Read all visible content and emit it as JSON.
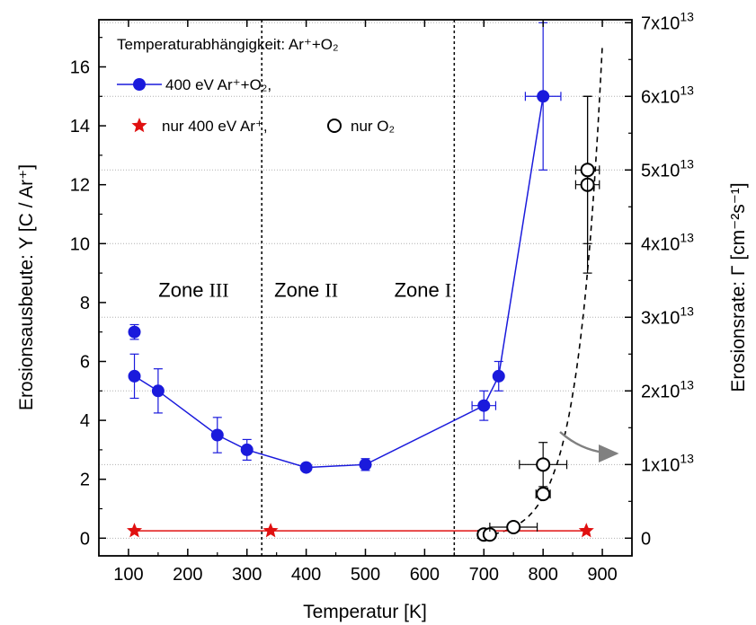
{
  "chart_data": {
    "type": "scatter",
    "title": "Temperaturabhängigkeit: Ar⁺+O₂",
    "xlabel": "Temperatur [K]",
    "ylabel_left": "Erosionsausbeute: Y [C / Ar⁺]",
    "ylabel_right": "Erosionsrate: Γ [cm⁻²s⁻¹]",
    "xlim": [
      50,
      950
    ],
    "ylim_left": [
      -0.6,
      17.6
    ],
    "ylim_right_scale_e13": [
      -0.24,
      7.04
    ],
    "x_ticks": [
      "100",
      "200",
      "300",
      "400",
      "500",
      "600",
      "700",
      "800",
      "900"
    ],
    "y_ticks_left": [
      "0",
      "2",
      "4",
      "6",
      "8",
      "10",
      "12",
      "14",
      "16"
    ],
    "y_ticks_right": [
      "0",
      "1x10",
      "2x10",
      "3x10",
      "4x10",
      "5x10",
      "6x10",
      "7x10"
    ],
    "y_ticks_right_exp": "13",
    "grid": "horizontal dotted",
    "zones": [
      {
        "name": "Zone",
        "numeral": "III"
      },
      {
        "name": "Zone",
        "numeral": "II"
      },
      {
        "name": "Zone",
        "numeral": "I"
      }
    ],
    "zone_boundaries": [
      325,
      650
    ],
    "series": [
      {
        "name": "400 eV Ar⁺+O₂,",
        "axis": "left",
        "color": "#1a1adc",
        "marker": "filled-circle",
        "connected": true,
        "points": [
          {
            "x": 110,
            "y": 5.5,
            "yerr": 0.75
          },
          {
            "x": 150,
            "y": 5.0,
            "yerr": 0.75
          },
          {
            "x": 250,
            "y": 3.5,
            "yerr": 0.6
          },
          {
            "x": 300,
            "y": 3.0,
            "yerr": 0.35
          },
          {
            "x": 400,
            "y": 2.4
          },
          {
            "x": 500,
            "y": 2.5,
            "yerr": 0.2
          },
          {
            "x": 700,
            "y": 4.5,
            "yerr": 0.5,
            "xerr": 20
          },
          {
            "x": 725,
            "y": 5.5,
            "yerr": 0.5
          },
          {
            "x": 800,
            "y": 15.0,
            "yerr": 2.5,
            "xerr": 30
          }
        ],
        "extra_points": [
          {
            "x": 110,
            "y": 7.0,
            "yerr": 0.25
          }
        ]
      },
      {
        "name": "nur 400 eV Ar⁺,",
        "axis": "left",
        "color": "#e01010",
        "marker": "star",
        "connected": true,
        "points": [
          {
            "x": 110,
            "y": 0.25
          },
          {
            "x": 340,
            "y": 0.25
          },
          {
            "x": 873,
            "y": 0.25
          }
        ]
      },
      {
        "name": "nur O₂",
        "axis": "right",
        "units": "1e13 cm^-2 s^-1",
        "color": "#000000",
        "marker": "open-circle",
        "connected": false,
        "points": [
          {
            "x": 700,
            "y": 0.05,
            "xerr": 10
          },
          {
            "x": 710,
            "y": 0.05
          },
          {
            "x": 750,
            "y": 0.15,
            "xerr": 40
          },
          {
            "x": 800,
            "y": 0.6,
            "xerr": 12
          },
          {
            "x": 800,
            "y": 1.0,
            "xerr": 40,
            "yerr": 0.3
          },
          {
            "x": 875,
            "y": 4.8,
            "xerr": 20,
            "yerr": 1.2
          },
          {
            "x": 875,
            "y": 5.0,
            "xerr": 20,
            "yerr": 1.0
          }
        ],
        "fit_curve": "dashed exponential from 700 K to 900 K"
      }
    ],
    "annotation_arrow": "points to right axis"
  }
}
